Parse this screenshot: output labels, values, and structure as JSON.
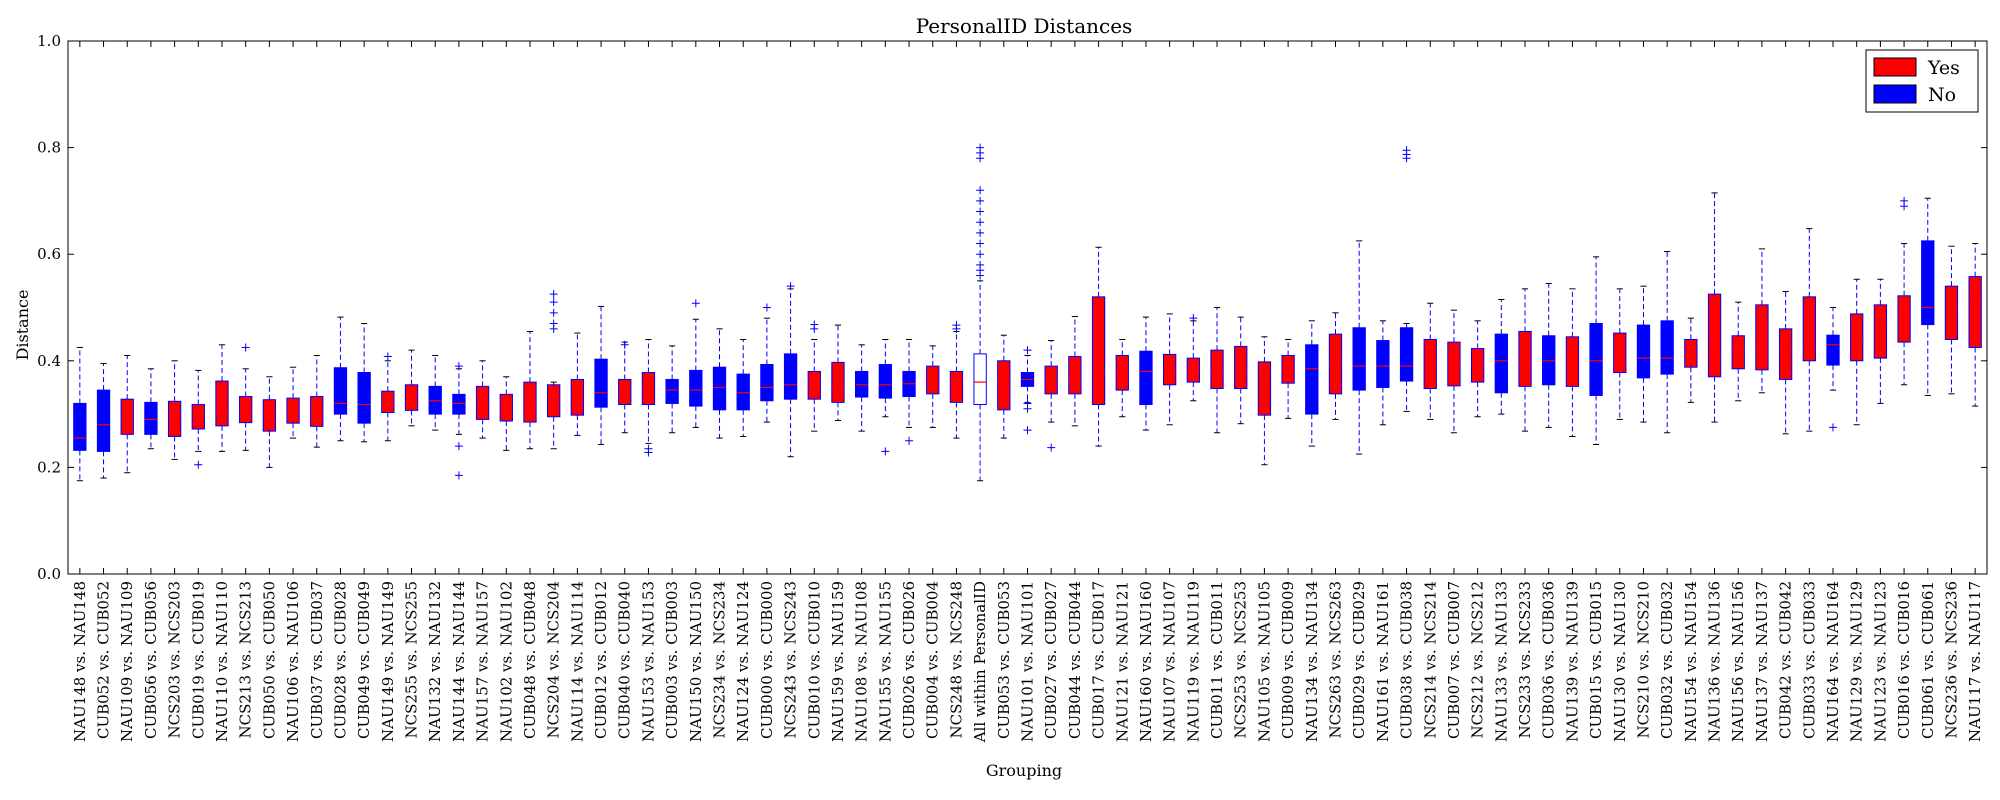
{
  "chart_data": {
    "type": "box",
    "title": "PersonalID Distances",
    "xlabel": "Grouping",
    "ylabel": "Distance",
    "ylim": [
      0.0,
      1.0
    ],
    "yticks": [
      "0.0",
      "0.2",
      "0.4",
      "0.6",
      "0.8",
      "1.0"
    ],
    "grid": false,
    "legend": {
      "position": "top-right",
      "entries": [
        {
          "label": "Yes",
          "color": "#ff0000"
        },
        {
          "label": "No",
          "color": "#0000ff"
        }
      ]
    },
    "colors": {
      "Yes": "#ff0000",
      "No": "#0000ff",
      "All": "#ffffff",
      "median": "#ff0000",
      "whisker": "#0000ff"
    },
    "series_key": [
      "label",
      "group",
      "whisker_low",
      "q1",
      "median",
      "q3",
      "whisker_high",
      "outliers"
    ],
    "boxes": [
      [
        "NAU148 vs. NAU148",
        "No",
        0.175,
        0.232,
        0.255,
        0.32,
        0.425,
        []
      ],
      [
        "CUB052 vs. CUB052",
        "No",
        0.18,
        0.23,
        0.28,
        0.345,
        0.395,
        []
      ],
      [
        "NAU109 vs. NAU109",
        "Yes",
        0.19,
        0.262,
        0.29,
        0.328,
        0.41,
        []
      ],
      [
        "CUB056 vs. CUB056",
        "No",
        0.235,
        0.262,
        0.29,
        0.322,
        0.385,
        []
      ],
      [
        "NCS203 vs. NCS203",
        "Yes",
        0.215,
        0.258,
        0.297,
        0.324,
        0.4,
        []
      ],
      [
        "CUB019 vs. CUB019",
        "Yes",
        0.23,
        0.272,
        0.3,
        0.318,
        0.382,
        [
          0.205
        ]
      ],
      [
        "NAU110 vs. NAU110",
        "Yes",
        0.23,
        0.278,
        0.305,
        0.362,
        0.43,
        []
      ],
      [
        "NCS213 vs. NCS213",
        "Yes",
        0.232,
        0.284,
        0.308,
        0.333,
        0.385,
        [
          0.425
        ]
      ],
      [
        "CUB050 vs. CUB050",
        "Yes",
        0.2,
        0.268,
        0.3,
        0.327,
        0.37,
        []
      ],
      [
        "NAU106 vs. NAU106",
        "Yes",
        0.255,
        0.283,
        0.308,
        0.33,
        0.388,
        []
      ],
      [
        "CUB037 vs. CUB037",
        "Yes",
        0.238,
        0.277,
        0.308,
        0.333,
        0.41,
        []
      ],
      [
        "CUB028 vs. CUB028",
        "No",
        0.25,
        0.3,
        0.32,
        0.387,
        0.482,
        []
      ],
      [
        "CUB049 vs. CUB049",
        "No",
        0.248,
        0.283,
        0.318,
        0.378,
        0.47,
        []
      ],
      [
        "NAU149 vs. NAU149",
        "Yes",
        0.25,
        0.303,
        0.318,
        0.343,
        0.4,
        [
          0.408
        ]
      ],
      [
        "NCS255 vs. NCS255",
        "Yes",
        0.278,
        0.307,
        0.325,
        0.355,
        0.42,
        []
      ],
      [
        "NAU132 vs. NAU132",
        "No",
        0.27,
        0.3,
        0.325,
        0.352,
        0.41,
        []
      ],
      [
        "NAU144 vs. NAU144",
        "No",
        0.262,
        0.3,
        0.32,
        0.337,
        0.385,
        [
          0.185,
          0.24,
          0.39
        ]
      ],
      [
        "NAU157 vs. NAU157",
        "Yes",
        0.255,
        0.29,
        0.325,
        0.352,
        0.4,
        []
      ],
      [
        "NAU102 vs. NAU102",
        "Yes",
        0.232,
        0.287,
        0.32,
        0.337,
        0.37,
        []
      ],
      [
        "CUB048 vs. CUB048",
        "Yes",
        0.235,
        0.285,
        0.325,
        0.36,
        0.455,
        []
      ],
      [
        "NCS204 vs. NCS204",
        "Yes",
        0.235,
        0.295,
        0.328,
        0.355,
        0.36,
        [
          0.46,
          0.47,
          0.49,
          0.51,
          0.525
        ]
      ],
      [
        "NAU114 vs. NAU114",
        "Yes",
        0.26,
        0.298,
        0.33,
        0.365,
        0.452,
        []
      ],
      [
        "CUB012 vs. CUB012",
        "No",
        0.243,
        0.313,
        0.34,
        0.403,
        0.502,
        []
      ],
      [
        "CUB040 vs. CUB040",
        "Yes",
        0.265,
        0.318,
        0.34,
        0.365,
        0.435,
        [
          0.43
        ]
      ],
      [
        "NAU153 vs. NAU153",
        "Yes",
        0.245,
        0.318,
        0.35,
        0.378,
        0.44,
        [
          0.228,
          0.235
        ]
      ],
      [
        "CUB003 vs. CUB003",
        "No",
        0.265,
        0.32,
        0.345,
        0.365,
        0.428,
        []
      ],
      [
        "NAU150 vs. NAU150",
        "No",
        0.275,
        0.315,
        0.345,
        0.382,
        0.478,
        [
          0.508
        ]
      ],
      [
        "NCS234 vs. NCS234",
        "No",
        0.255,
        0.308,
        0.35,
        0.388,
        0.46,
        []
      ],
      [
        "NAU124 vs. NAU124",
        "No",
        0.258,
        0.308,
        0.34,
        0.375,
        0.44,
        []
      ],
      [
        "CUB000 vs. CUB000",
        "No",
        0.285,
        0.325,
        0.35,
        0.393,
        0.48,
        [
          0.5
        ]
      ],
      [
        "NCS243 vs. NCS243",
        "No",
        0.22,
        0.328,
        0.355,
        0.413,
        0.535,
        [
          0.54
        ]
      ],
      [
        "CUB010 vs. CUB010",
        "Yes",
        0.268,
        0.328,
        0.355,
        0.38,
        0.44,
        [
          0.46,
          0.468
        ]
      ],
      [
        "NAU159 vs. NAU159",
        "Yes",
        0.288,
        0.322,
        0.355,
        0.397,
        0.467,
        []
      ],
      [
        "NAU108 vs. NAU108",
        "No",
        0.268,
        0.332,
        0.355,
        0.38,
        0.43,
        []
      ],
      [
        "NAU155 vs. NAU155",
        "No",
        0.295,
        0.33,
        0.355,
        0.393,
        0.44,
        [
          0.23
        ]
      ],
      [
        "CUB026 vs. CUB026",
        "No",
        0.275,
        0.333,
        0.357,
        0.38,
        0.44,
        [
          0.25
        ]
      ],
      [
        "CUB004 vs. CUB004",
        "Yes",
        0.275,
        0.338,
        0.36,
        0.39,
        0.428,
        []
      ],
      [
        "NCS248 vs. NCS248",
        "Yes",
        0.255,
        0.322,
        0.363,
        0.38,
        0.455,
        [
          0.46,
          0.467
        ]
      ],
      [
        "All within PersonalID",
        "All",
        0.175,
        0.318,
        0.36,
        0.413,
        0.55,
        [
          0.56,
          0.57,
          0.58,
          0.6,
          0.62,
          0.64,
          0.66,
          0.68,
          0.7,
          0.72,
          0.78,
          0.79,
          0.8
        ]
      ],
      [
        "CUB053 vs. CUB053",
        "Yes",
        0.255,
        0.308,
        0.365,
        0.4,
        0.448,
        []
      ],
      [
        "NAU101 vs. NAU101",
        "No",
        0.322,
        0.352,
        0.365,
        0.378,
        0.41,
        [
          0.27,
          0.31,
          0.32,
          0.42
        ]
      ],
      [
        "CUB027 vs. CUB027",
        "Yes",
        0.285,
        0.338,
        0.37,
        0.39,
        0.438,
        [
          0.237
        ]
      ],
      [
        "CUB044 vs. CUB044",
        "Yes",
        0.278,
        0.338,
        0.37,
        0.408,
        0.483,
        []
      ],
      [
        "CUB017 vs. CUB017",
        "Yes",
        0.24,
        0.318,
        0.38,
        0.52,
        0.613,
        []
      ],
      [
        "NAU121 vs. NAU121",
        "Yes",
        0.295,
        0.345,
        0.38,
        0.41,
        0.44,
        []
      ],
      [
        "NAU160 vs. NAU160",
        "No",
        0.27,
        0.318,
        0.38,
        0.418,
        0.482,
        []
      ],
      [
        "NAU107 vs. NAU107",
        "Yes",
        0.28,
        0.355,
        0.38,
        0.412,
        0.488,
        []
      ],
      [
        "NAU119 vs. NAU119",
        "Yes",
        0.325,
        0.36,
        0.38,
        0.405,
        0.475,
        [
          0.48
        ]
      ],
      [
        "CUB011 vs. CUB011",
        "Yes",
        0.265,
        0.348,
        0.38,
        0.42,
        0.5,
        []
      ],
      [
        "NCS253 vs. NCS253",
        "Yes",
        0.282,
        0.348,
        0.38,
        0.427,
        0.482,
        []
      ],
      [
        "NAU105 vs. NAU105",
        "Yes",
        0.205,
        0.298,
        0.385,
        0.398,
        0.445,
        []
      ],
      [
        "CUB009 vs. CUB009",
        "Yes",
        0.292,
        0.358,
        0.385,
        0.41,
        0.44,
        []
      ],
      [
        "NAU134 vs. NAU134",
        "No",
        0.24,
        0.3,
        0.385,
        0.43,
        0.475,
        []
      ],
      [
        "NCS263 vs. NCS263",
        "Yes",
        0.29,
        0.338,
        0.39,
        0.45,
        0.49,
        []
      ],
      [
        "CUB029 vs. CUB029",
        "No",
        0.225,
        0.345,
        0.39,
        0.462,
        0.625,
        []
      ],
      [
        "NAU161 vs. NAU161",
        "No",
        0.28,
        0.35,
        0.39,
        0.438,
        0.475,
        []
      ],
      [
        "CUB038 vs. CUB038",
        "No",
        0.305,
        0.362,
        0.39,
        0.462,
        0.47,
        [
          0.78,
          0.787,
          0.795
        ]
      ],
      [
        "NCS214 vs. NCS214",
        "Yes",
        0.29,
        0.348,
        0.39,
        0.44,
        0.508,
        []
      ],
      [
        "CUB007 vs. CUB007",
        "Yes",
        0.265,
        0.353,
        0.39,
        0.435,
        0.495,
        []
      ],
      [
        "NCS212 vs. NCS212",
        "Yes",
        0.295,
        0.36,
        0.395,
        0.423,
        0.475,
        []
      ],
      [
        "NAU133 vs. NAU133",
        "No",
        0.3,
        0.34,
        0.4,
        0.45,
        0.515,
        []
      ],
      [
        "NCS233 vs. NCS233",
        "Yes",
        0.268,
        0.352,
        0.4,
        0.455,
        0.535,
        []
      ],
      [
        "CUB036 vs. CUB036",
        "No",
        0.275,
        0.355,
        0.4,
        0.447,
        0.545,
        []
      ],
      [
        "NAU139 vs. NAU139",
        "Yes",
        0.258,
        0.352,
        0.4,
        0.445,
        0.535,
        []
      ],
      [
        "CUB015 vs. CUB015",
        "No",
        0.243,
        0.335,
        0.4,
        0.47,
        0.595,
        []
      ],
      [
        "NAU130 vs. NAU130",
        "Yes",
        0.29,
        0.378,
        0.4,
        0.452,
        0.535,
        []
      ],
      [
        "NCS210 vs. NCS210",
        "No",
        0.285,
        0.368,
        0.405,
        0.467,
        0.54,
        []
      ],
      [
        "CUB032 vs. CUB032",
        "No",
        0.265,
        0.375,
        0.405,
        0.475,
        0.605,
        []
      ],
      [
        "NAU154 vs. NAU154",
        "Yes",
        0.322,
        0.388,
        0.41,
        0.44,
        0.48,
        []
      ],
      [
        "NAU136 vs. NAU136",
        "Yes",
        0.285,
        0.37,
        0.415,
        0.525,
        0.715,
        []
      ],
      [
        "NAU156 vs. NAU156",
        "Yes",
        0.325,
        0.385,
        0.42,
        0.447,
        0.51,
        []
      ],
      [
        "NAU137 vs. NAU137",
        "Yes",
        0.34,
        0.383,
        0.425,
        0.505,
        0.61,
        []
      ],
      [
        "CUB042 vs. CUB042",
        "Yes",
        0.263,
        0.365,
        0.425,
        0.46,
        0.53,
        []
      ],
      [
        "CUB033 vs. CUB033",
        "Yes",
        0.268,
        0.4,
        0.43,
        0.52,
        0.648,
        []
      ],
      [
        "NAU164 vs. NAU164",
        "No",
        0.345,
        0.392,
        0.43,
        0.448,
        0.5,
        [
          0.275
        ]
      ],
      [
        "NAU129 vs. NAU129",
        "Yes",
        0.28,
        0.4,
        0.44,
        0.488,
        0.553,
        []
      ],
      [
        "NAU123 vs. NAU123",
        "Yes",
        0.32,
        0.405,
        0.47,
        0.505,
        0.553,
        []
      ],
      [
        "CUB016 vs. CUB016",
        "Yes",
        0.355,
        0.435,
        0.49,
        0.522,
        0.62,
        [
          0.69,
          0.7
        ]
      ],
      [
        "CUB061 vs. CUB061",
        "No",
        0.335,
        0.468,
        0.5,
        0.625,
        0.705,
        []
      ],
      [
        "NCS236 vs. NCS236",
        "Yes",
        0.338,
        0.44,
        0.5,
        0.54,
        0.615,
        []
      ],
      [
        "NAU117 vs. NAU117",
        "Yes",
        0.315,
        0.425,
        0.51,
        0.558,
        0.62,
        []
      ]
    ]
  }
}
